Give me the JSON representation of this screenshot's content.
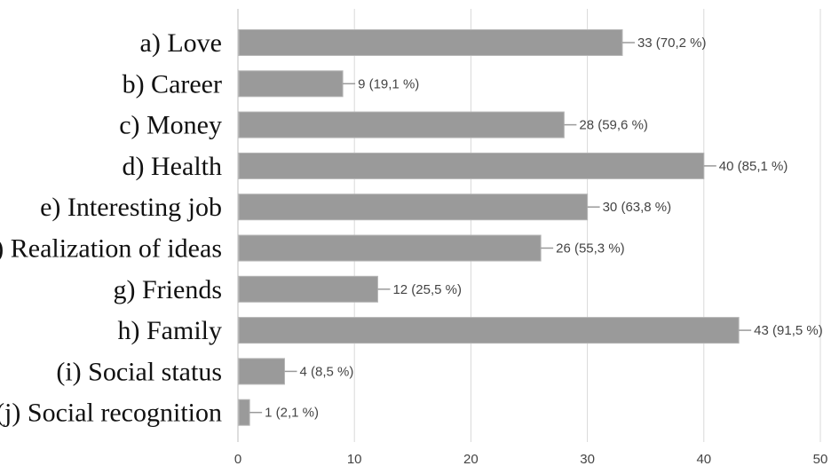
{
  "chart_data": {
    "type": "bar",
    "orientation": "horizontal",
    "categories": [
      "a) Love",
      "b) Career",
      "c) Money",
      "d) Health",
      "e) Interesting job",
      "f) Realization of ideas",
      "g) Friends",
      "h) Family",
      "(i) Social status",
      "(j) Social recognition"
    ],
    "values": [
      33,
      9,
      28,
      40,
      30,
      26,
      12,
      43,
      4,
      1
    ],
    "value_labels": [
      "33 (70,2 %)",
      "9 (19,1 %)",
      "28 (59,6 %)",
      "40 (85,1 %)",
      "30 (63,8 %)",
      "26 (55,3 %)",
      "12 (25,5 %)",
      "43 (91,5 %)",
      "4 (8,5 %)",
      "1 (2,1 %)"
    ],
    "xlim": [
      0,
      50
    ],
    "xticks": [
      "0",
      "10",
      "20",
      "30",
      "40",
      "50"
    ],
    "title": "",
    "xlabel": "",
    "ylabel": "",
    "grid": true,
    "bar_color": "#9a9a9a"
  }
}
